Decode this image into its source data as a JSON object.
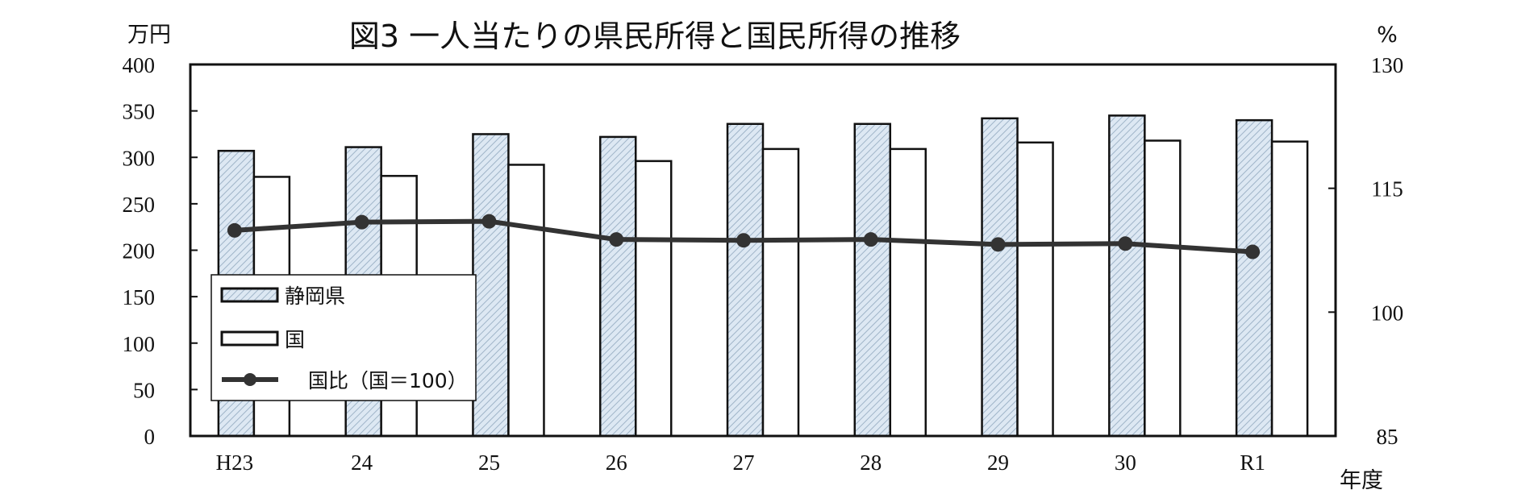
{
  "chart_data": {
    "type": "bar",
    "title": "図3 一人当たりの県民所得と国民所得の推移",
    "y_left_unit": "万円",
    "y_right_unit": "%",
    "x_unit": "年度",
    "categories": [
      "H23",
      "24",
      "25",
      "26",
      "27",
      "28",
      "29",
      "30",
      "R1"
    ],
    "y_left": {
      "ylim": [
        0,
        400
      ],
      "ticks": [
        0,
        50,
        100,
        150,
        200,
        250,
        300,
        350,
        400
      ]
    },
    "y_right": {
      "ylim": [
        85,
        130
      ],
      "ticks": [
        85,
        100,
        115,
        130
      ]
    },
    "series": [
      {
        "name": "静岡県",
        "kind": "bar",
        "axis": "left",
        "pattern": "hatched-light-blue",
        "values": [
          307,
          311,
          325,
          322,
          336,
          336,
          342,
          345,
          340
        ]
      },
      {
        "name": "国",
        "kind": "bar",
        "axis": "left",
        "pattern": "white",
        "values": [
          279,
          280,
          292,
          296,
          309,
          309,
          316,
          318,
          317
        ]
      },
      {
        "name": "国比（国＝100）",
        "kind": "line",
        "axis": "right",
        "color": "#333333",
        "values": [
          109.9,
          110.9,
          111.0,
          108.8,
          108.7,
          108.8,
          108.2,
          108.3,
          107.3
        ]
      }
    ],
    "legend_position": "lower-left",
    "grid": false
  }
}
